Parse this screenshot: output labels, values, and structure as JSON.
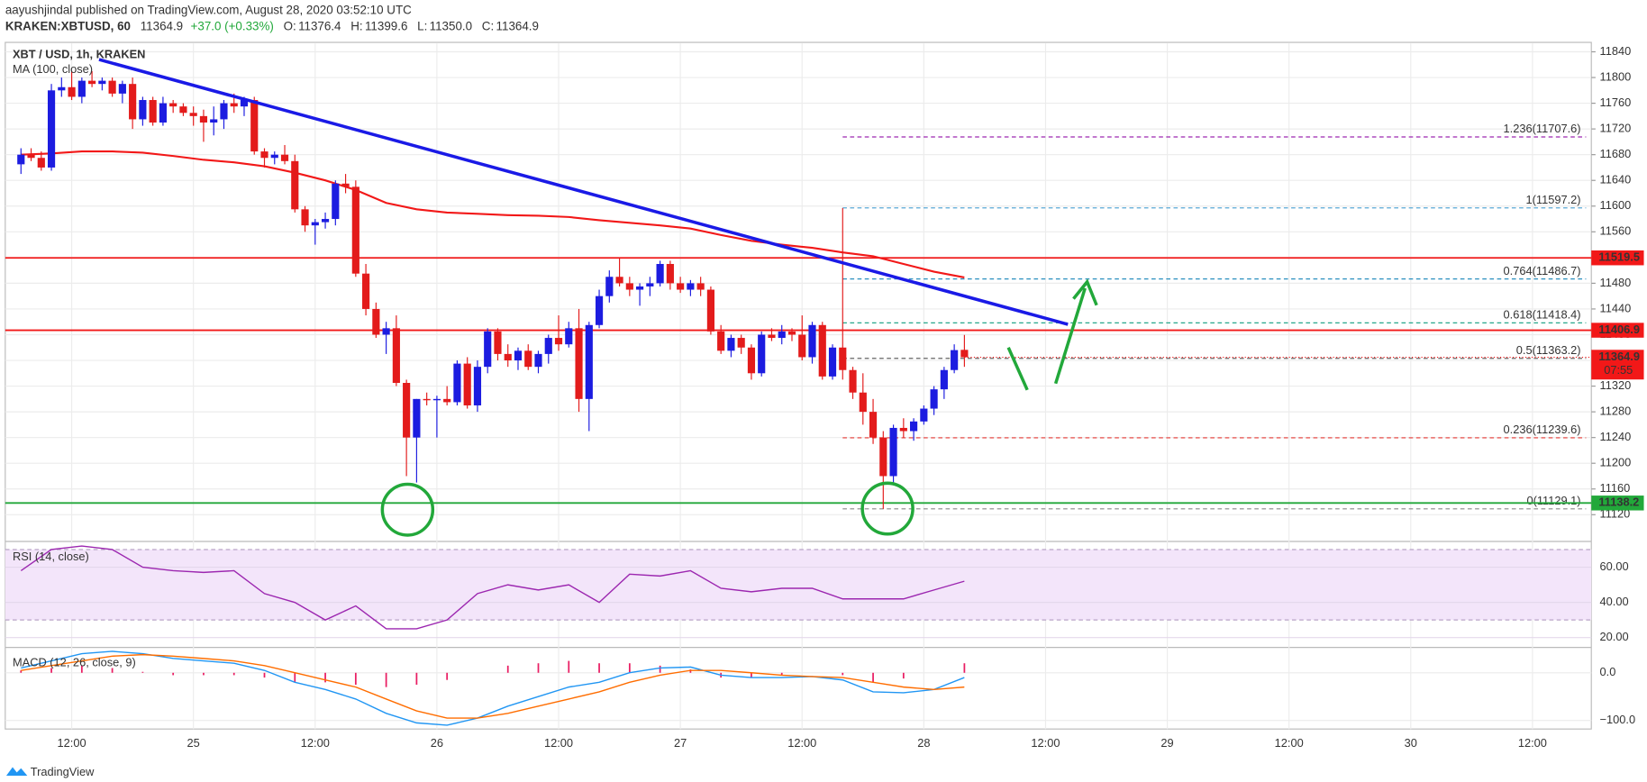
{
  "header": {
    "publisher": "aayushjindal published on TradingView.com, August 28, 2020 03:52:10 UTC",
    "symbol": "KRAKEN:XBTUSD, 60",
    "last": "11364.9",
    "change": "+37.0 (+0.33%)",
    "ohlc": [
      [
        "O:",
        "11376.4"
      ],
      [
        "H:",
        "11399.6"
      ],
      [
        "L:",
        "11350.0"
      ],
      [
        "C:",
        "11364.9"
      ]
    ]
  },
  "footer": "TradingView",
  "chart_data": {
    "type": "candlestick",
    "title": "XBT / USD, 1h, KRAKEN",
    "up_color": "#1c1ce0",
    "down_color": "#e31b1b",
    "candles": [
      [
        11665,
        11690,
        11650,
        11680
      ],
      [
        11680,
        11690,
        11670,
        11675
      ],
      [
        11675,
        11685,
        11655,
        11660
      ],
      [
        11660,
        11790,
        11655,
        11780
      ],
      [
        11780,
        11800,
        11770,
        11785
      ],
      [
        11785,
        11810,
        11765,
        11770
      ],
      [
        11770,
        11800,
        11760,
        11795
      ],
      [
        11795,
        11810,
        11785,
        11790
      ],
      [
        11790,
        11800,
        11780,
        11795
      ],
      [
        11795,
        11800,
        11770,
        11775
      ],
      [
        11775,
        11795,
        11760,
        11790
      ],
      [
        11790,
        11800,
        11720,
        11735
      ],
      [
        11735,
        11770,
        11725,
        11765
      ],
      [
        11765,
        11770,
        11725,
        11730
      ],
      [
        11730,
        11770,
        11725,
        11760
      ],
      [
        11760,
        11765,
        11745,
        11755
      ],
      [
        11755,
        11760,
        11740,
        11745
      ],
      [
        11745,
        11755,
        11725,
        11740
      ],
      [
        11740,
        11750,
        11700,
        11730
      ],
      [
        11730,
        11755,
        11710,
        11735
      ],
      [
        11735,
        11765,
        11720,
        11760
      ],
      [
        11760,
        11775,
        11745,
        11755
      ],
      [
        11755,
        11770,
        11740,
        11765
      ],
      [
        11765,
        11770,
        11680,
        11685
      ],
      [
        11685,
        11690,
        11660,
        11675
      ],
      [
        11675,
        11685,
        11665,
        11680
      ],
      [
        11680,
        11695,
        11665,
        11670
      ],
      [
        11670,
        11680,
        11590,
        11595
      ],
      [
        11595,
        11600,
        11560,
        11570
      ],
      [
        11570,
        11580,
        11540,
        11575
      ],
      [
        11575,
        11590,
        11565,
        11580
      ],
      [
        11580,
        11640,
        11570,
        11635
      ],
      [
        11635,
        11650,
        11620,
        11630
      ],
      [
        11630,
        11640,
        11490,
        11495
      ],
      [
        11495,
        11510,
        11430,
        11440
      ],
      [
        11440,
        11450,
        11395,
        11400
      ],
      [
        11400,
        11420,
        11370,
        11410
      ],
      [
        11410,
        11430,
        11320,
        11325
      ],
      [
        11325,
        11330,
        11180,
        11240
      ],
      [
        11240,
        11300,
        11170,
        11300
      ],
      [
        11300,
        11310,
        11290,
        11298
      ],
      [
        11298,
        11305,
        11240,
        11300
      ],
      [
        11300,
        11320,
        11290,
        11295
      ],
      [
        11295,
        11360,
        11290,
        11355
      ],
      [
        11355,
        11365,
        11285,
        11290
      ],
      [
        11290,
        11360,
        11280,
        11350
      ],
      [
        11350,
        11410,
        11340,
        11405
      ],
      [
        11405,
        11410,
        11360,
        11370
      ],
      [
        11370,
        11385,
        11350,
        11360
      ],
      [
        11360,
        11380,
        11345,
        11375
      ],
      [
        11375,
        11385,
        11345,
        11350
      ],
      [
        11350,
        11375,
        11340,
        11370
      ],
      [
        11370,
        11400,
        11355,
        11395
      ],
      [
        11395,
        11430,
        11375,
        11385
      ],
      [
        11385,
        11420,
        11380,
        11410
      ],
      [
        11410,
        11440,
        11280,
        11300
      ],
      [
        11300,
        11420,
        11250,
        11415
      ],
      [
        11415,
        11470,
        11410,
        11460
      ],
      [
        11460,
        11500,
        11450,
        11490
      ],
      [
        11490,
        11520,
        11475,
        11480
      ],
      [
        11480,
        11490,
        11460,
        11470
      ],
      [
        11470,
        11480,
        11445,
        11475
      ],
      [
        11475,
        11490,
        11460,
        11480
      ],
      [
        11480,
        11515,
        11475,
        11510
      ],
      [
        11510,
        11515,
        11470,
        11480
      ],
      [
        11480,
        11490,
        11465,
        11470
      ],
      [
        11470,
        11485,
        11460,
        11480
      ],
      [
        11480,
        11490,
        11460,
        11470
      ],
      [
        11470,
        11475,
        11400,
        11405
      ],
      [
        11405,
        11415,
        11370,
        11375
      ],
      [
        11375,
        11400,
        11365,
        11395
      ],
      [
        11395,
        11400,
        11370,
        11380
      ],
      [
        11380,
        11385,
        11330,
        11340
      ],
      [
        11340,
        11405,
        11335,
        11400
      ],
      [
        11400,
        11410,
        11390,
        11395
      ],
      [
        11395,
        11415,
        11385,
        11405
      ],
      [
        11405,
        11410,
        11390,
        11400
      ],
      [
        11400,
        11430,
        11360,
        11365
      ],
      [
        11365,
        11420,
        11355,
        11415
      ],
      [
        11415,
        11420,
        11330,
        11335
      ],
      [
        11335,
        11385,
        11330,
        11380
      ],
      [
        11380,
        11597,
        11330,
        11345
      ],
      [
        11345,
        11350,
        11300,
        11310
      ],
      [
        11310,
        11340,
        11260,
        11280
      ],
      [
        11280,
        11300,
        11230,
        11240
      ],
      [
        11240,
        11250,
        11129,
        11180
      ],
      [
        11180,
        11260,
        11170,
        11255
      ],
      [
        11255,
        11270,
        11240,
        11250
      ],
      [
        11250,
        11270,
        11235,
        11265
      ],
      [
        11265,
        11290,
        11260,
        11285
      ],
      [
        11285,
        11320,
        11275,
        11315
      ],
      [
        11315,
        11350,
        11300,
        11345
      ],
      [
        11345,
        11385,
        11340,
        11376
      ],
      [
        11376.4,
        11399.6,
        11350.0,
        11364.9
      ]
    ],
    "xlim": [
      -1.55,
      154.8
    ],
    "xticks": [
      {
        "value": 5,
        "label": "12:00"
      },
      {
        "value": 17,
        "label": "25"
      },
      {
        "value": 29,
        "label": "12:00"
      },
      {
        "value": 41,
        "label": "26"
      },
      {
        "value": 53,
        "label": "12:00"
      },
      {
        "value": 65,
        "label": "27"
      },
      {
        "value": 77,
        "label": "12:00"
      },
      {
        "value": 89,
        "label": "28"
      },
      {
        "value": 101,
        "label": "12:00"
      },
      {
        "value": 113,
        "label": "29"
      },
      {
        "value": 125,
        "label": "12:00"
      },
      {
        "value": 137,
        "label": "30"
      },
      {
        "value": 149,
        "label": "12:00"
      }
    ],
    "ylim": [
      11080,
      11853
    ],
    "yticks": [
      11120,
      11160,
      11200,
      11240,
      11280,
      11320,
      11360,
      11400,
      11440,
      11480,
      11520,
      11560,
      11600,
      11640,
      11680,
      11720,
      11760,
      11800,
      11840
    ],
    "grid": true,
    "ma": {
      "name": "MA (100, close)",
      "color": "#f21818",
      "x": [
        0,
        3,
        6,
        9,
        12,
        15,
        18,
        21,
        24,
        27,
        30,
        33,
        36,
        39,
        42,
        45,
        48,
        51,
        54,
        57,
        60,
        63,
        66,
        69,
        72,
        75,
        78,
        81,
        84,
        87,
        90,
        93
      ],
      "values": [
        11680,
        11682,
        11685,
        11685,
        11683,
        11678,
        11672,
        11668,
        11662,
        11652,
        11640,
        11625,
        11605,
        11595,
        11590,
        11588,
        11586,
        11585,
        11583,
        11578,
        11574,
        11570,
        11565,
        11555,
        11546,
        11540,
        11535,
        11528,
        11522,
        11510,
        11498,
        11489
      ]
    },
    "trendline": {
      "color": "#1a1ae6",
      "x": [
        7.7,
        103.2
      ],
      "values": [
        11828,
        11416
      ]
    },
    "levels": [
      {
        "value": 11519.5,
        "color": "#f21818"
      },
      {
        "value": 11406.9,
        "color": "#f21818"
      },
      {
        "value": 11138.2,
        "color": "#22a83a"
      }
    ],
    "price_tag": {
      "value": 11364.9,
      "countdown": "07:55",
      "color": "#f21818"
    },
    "fib": {
      "x_start": 81,
      "levels": [
        {
          "label": "1.236(11707.6)",
          "value": 11707.6,
          "color": "#9c27b0"
        },
        {
          "label": "1(11597.2)",
          "value": 11597.2,
          "color": "#5aa9d6"
        },
        {
          "label": "0.764(11486.7)",
          "value": 11486.7,
          "color": "#2a8fbf"
        },
        {
          "label": "0.618(11418.4)",
          "value": 11418.4,
          "color": "#27a68a"
        },
        {
          "label": "0.5(11363.2)",
          "value": 11363.2,
          "color": "#666666"
        },
        {
          "label": "0.236(11239.6)",
          "value": 11239.6,
          "color": "#e53935"
        },
        {
          "label": "0(11129.1)",
          "value": 11129.1,
          "color": "#888888"
        }
      ]
    },
    "rsi": {
      "name": "RSI (14, close)",
      "color": "#9c27b0",
      "band": [
        30,
        70
      ],
      "ylim": [
        15,
        74
      ],
      "yticks": [
        {
          "value": 60,
          "label": "60.00"
        },
        {
          "value": 40,
          "label": "40.00"
        },
        {
          "value": 20,
          "label": "20.00"
        }
      ],
      "x": [
        0,
        3,
        6,
        9,
        12,
        15,
        18,
        21,
        24,
        27,
        30,
        33,
        36,
        39,
        42,
        45,
        48,
        51,
        54,
        57,
        60,
        63,
        66,
        69,
        72,
        75,
        78,
        81,
        84,
        87,
        90,
        93
      ],
      "values": [
        58,
        70,
        72,
        70,
        60,
        58,
        57,
        58,
        45,
        40,
        30,
        38,
        25,
        25,
        30,
        45,
        50,
        47,
        50,
        40,
        56,
        55,
        58,
        48,
        46,
        48,
        48,
        42,
        42,
        42,
        47,
        52
      ]
    },
    "macd": {
      "name": "MACD (12, 26, close, 9)",
      "ylim": [
        -118,
        51
      ],
      "yticks": [
        {
          "value": 0,
          "label": "0.0"
        },
        {
          "value": -100,
          "label": "−100.0"
        }
      ],
      "x": [
        0,
        3,
        6,
        9,
        12,
        15,
        18,
        21,
        24,
        27,
        30,
        33,
        36,
        39,
        42,
        45,
        48,
        51,
        54,
        57,
        60,
        63,
        66,
        69,
        72,
        75,
        78,
        81,
        84,
        87,
        90,
        93
      ],
      "macd": {
        "color": "#2196f3",
        "values": [
          10,
          25,
          40,
          45,
          40,
          30,
          25,
          20,
          5,
          -20,
          -35,
          -55,
          -85,
          -105,
          -110,
          -95,
          -70,
          -50,
          -30,
          -20,
          0,
          10,
          12,
          -5,
          -10,
          -10,
          -8,
          -15,
          -40,
          -42,
          -35,
          -10
        ]
      },
      "signal": {
        "color": "#ff6d00",
        "values": [
          5,
          15,
          25,
          35,
          38,
          35,
          30,
          25,
          15,
          0,
          -15,
          -30,
          -55,
          -80,
          -95,
          -95,
          -85,
          -70,
          -55,
          -40,
          -20,
          -5,
          5,
          5,
          0,
          -5,
          -8,
          -10,
          -20,
          -30,
          -35,
          -30
        ]
      },
      "histogram": {
        "color": "#e91e63",
        "values": [
          5,
          10,
          15,
          10,
          2,
          -5,
          -5,
          -5,
          -10,
          -20,
          -20,
          -25,
          -30,
          -25,
          -15,
          0,
          15,
          20,
          25,
          20,
          20,
          15,
          7,
          -10,
          -10,
          -5,
          0,
          -5,
          -20,
          -12,
          0,
          20
        ]
      }
    }
  }
}
